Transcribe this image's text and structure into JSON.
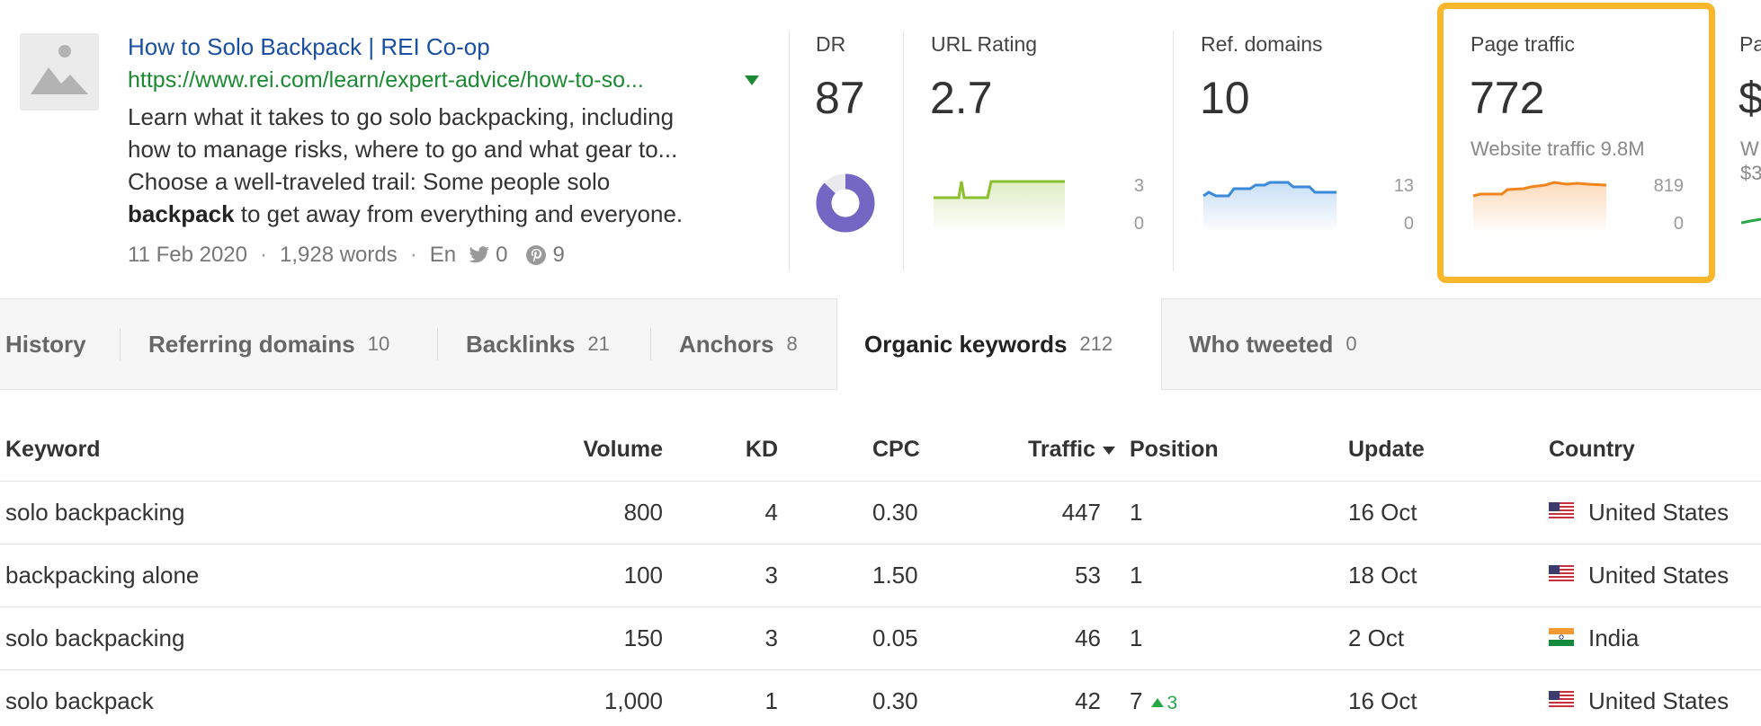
{
  "result": {
    "title": "How to Solo Backpack | REI Co-op",
    "url": "https://www.rei.com/learn/expert-advice/how-to-so...",
    "snippet": {
      "line1": "Learn what it takes to go solo backpacking, including",
      "line2": "how to manage risks, where to go and what gear to...",
      "line3": "Choose a well-traveled trail: Some people solo",
      "line4_bold": "backpack",
      "line4_rest": " to get away from everything and everyone."
    },
    "meta": {
      "date": "11 Feb 2020",
      "words": "1,928 words",
      "lang": "En",
      "tweets": "0",
      "pins": "9"
    }
  },
  "metrics": {
    "dr": {
      "label": "DR",
      "value": "87",
      "donut_fraction": 0.87
    },
    "url_rating": {
      "label": "URL Rating",
      "value": "2.7",
      "axis_max": "3",
      "axis_min": "0"
    },
    "ref_domains": {
      "label": "Ref. domains",
      "value": "10",
      "axis_max": "13",
      "axis_min": "0"
    },
    "page_traffic": {
      "label": "Page traffic",
      "value": "772",
      "sub": "Website traffic 9.8M",
      "axis_max": "819",
      "axis_min": "0"
    },
    "partial": {
      "label": "Pa",
      "value": "$",
      "sub1": "W",
      "sub2": "$3"
    }
  },
  "colors": {
    "link": "#1a4fa3",
    "url": "#1c8a32",
    "donut": "#7467c4",
    "url_rating_line": "#8cbf2e",
    "ref_domains_line": "#3b8ad9",
    "traffic_line": "#f2841d",
    "highlight": "#f8b72a",
    "position_up": "#28a745"
  },
  "tabs": [
    {
      "label": "History",
      "count": ""
    },
    {
      "label": "Referring domains",
      "count": "10"
    },
    {
      "label": "Backlinks",
      "count": "21"
    },
    {
      "label": "Anchors",
      "count": "8"
    },
    {
      "label": "Organic keywords",
      "count": "212",
      "active": true
    },
    {
      "label": "Who tweeted",
      "count": "0"
    }
  ],
  "table": {
    "headers": {
      "keyword": "Keyword",
      "volume": "Volume",
      "kd": "KD",
      "cpc": "CPC",
      "traffic": "Traffic",
      "position": "Position",
      "update": "Update",
      "country": "Country"
    },
    "rows": [
      {
        "keyword": "solo backpacking",
        "volume": "800",
        "kd": "4",
        "cpc": "0.30",
        "traffic": "447",
        "position": "1",
        "change": "",
        "update": "16 Oct",
        "country": "United States",
        "flag": "us-flag-icon"
      },
      {
        "keyword": "backpacking alone",
        "volume": "100",
        "kd": "3",
        "cpc": "1.50",
        "traffic": "53",
        "position": "1",
        "change": "",
        "update": "18 Oct",
        "country": "United States",
        "flag": "us-flag-icon"
      },
      {
        "keyword": "solo backpacking",
        "volume": "150",
        "kd": "3",
        "cpc": "0.05",
        "traffic": "46",
        "position": "1",
        "change": "",
        "update": "2 Oct",
        "country": "India",
        "flag": "india-flag-icon"
      },
      {
        "keyword": "solo backpack",
        "volume": "1,000",
        "kd": "1",
        "cpc": "0.30",
        "traffic": "42",
        "position": "7",
        "change": "3",
        "update": "16 Oct",
        "country": "United States",
        "flag": "us-flag-icon"
      }
    ]
  }
}
